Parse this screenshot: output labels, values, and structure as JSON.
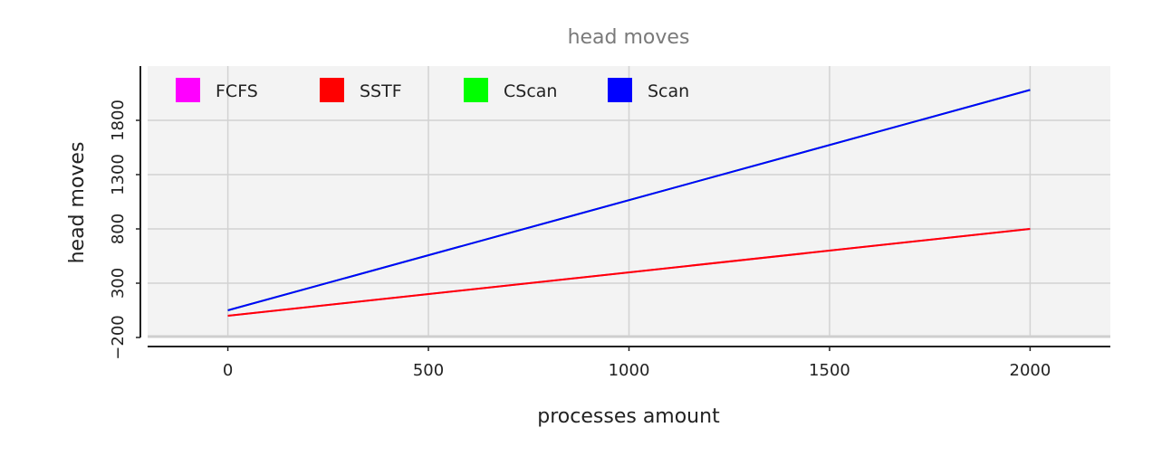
{
  "chart_data": {
    "type": "line",
    "title": "head moves",
    "xlabel": "processes amount",
    "ylabel": "head moves",
    "xlim": [
      -200,
      2200
    ],
    "ylim": [
      -200,
      2300
    ],
    "x_ticks": [
      0,
      500,
      1000,
      1500,
      2000
    ],
    "y_ticks": [
      -200,
      300,
      800,
      1300,
      1800
    ],
    "grid": true,
    "legend_position": "top-inside",
    "x": [
      0,
      2000
    ],
    "series": [
      {
        "name": "FCFS",
        "color": "#ff00ff",
        "values": [
          0,
          800
        ]
      },
      {
        "name": "SSTF",
        "color": "#ff0000",
        "values": [
          0,
          800
        ]
      },
      {
        "name": "CScan",
        "color": "#00ff00",
        "values": [
          50,
          2080
        ]
      },
      {
        "name": "Scan",
        "color": "#0000ff",
        "values": [
          50,
          2080
        ]
      }
    ]
  }
}
